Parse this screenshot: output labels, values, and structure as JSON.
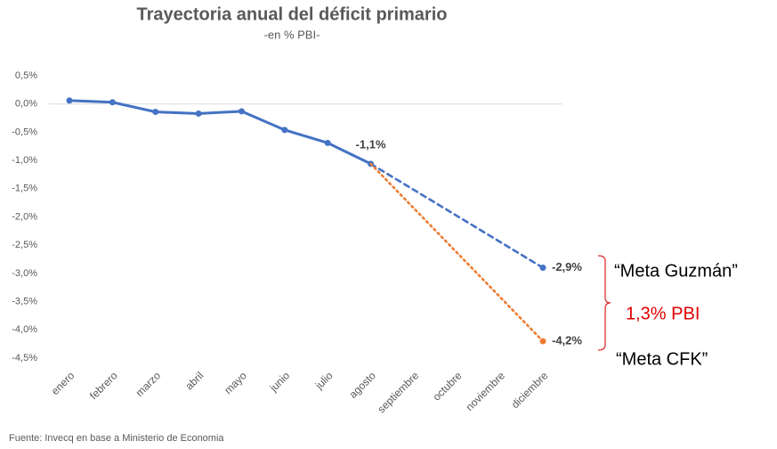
{
  "chart_data": {
    "type": "line",
    "title": "Trayectoria anual del déficit primario",
    "subtitle": "-en % PBI-",
    "source": "Fuente: Invecq en base a Ministerio de Economia",
    "categories": [
      "enero",
      "febrero",
      "marzo",
      "abril",
      "mayo",
      "junio",
      "julio",
      "agosto",
      "septiembre",
      "octubre",
      "noviembre",
      "diciembre"
    ],
    "series": [
      {
        "color": "#4472c4",
        "style": "solid",
        "values": [
          0.06,
          0.03,
          -0.14,
          -0.17,
          -0.13,
          -0.46,
          -0.69,
          -1.06,
          null,
          null,
          null,
          null
        ],
        "value_labels": [
          null,
          null,
          null,
          null,
          null,
          null,
          null,
          "-1,1%",
          null,
          null,
          null,
          null
        ]
      },
      {
        "color": "#4472c4",
        "style": "dashed",
        "x": [
          "agosto",
          "diciembre"
        ],
        "values": [
          -1.06,
          -2.9
        ],
        "value_labels": [
          null,
          "-2,9%"
        ]
      },
      {
        "color": "#ed7d31",
        "style": "dotted",
        "x": [
          "agosto",
          "diciembre"
        ],
        "values": [
          -1.06,
          -4.2
        ],
        "value_labels": [
          null,
          "-4,2%"
        ]
      }
    ],
    "ylim": [
      -4.5,
      0.5
    ],
    "yticks": [
      {
        "value": 0.5,
        "label": "0,5%"
      },
      {
        "value": 0,
        "label": "0,0%"
      },
      {
        "value": -0.5,
        "label": "-0,5%"
      },
      {
        "value": -1,
        "label": "-1,0%"
      },
      {
        "value": -1.5,
        "label": "-1,5%"
      },
      {
        "value": -2,
        "label": "-2,0%"
      },
      {
        "value": -2.5,
        "label": "-2,5%"
      },
      {
        "value": -3,
        "label": "-3,0%"
      },
      {
        "value": -3.5,
        "label": "-3,5%"
      },
      {
        "value": -4,
        "label": "-4,0%"
      },
      {
        "value": -4.5,
        "label": "-4,5%"
      }
    ],
    "annotations": [
      "“Meta Guzmán”",
      "1,3% PBI",
      "“Meta CFK”"
    ]
  }
}
